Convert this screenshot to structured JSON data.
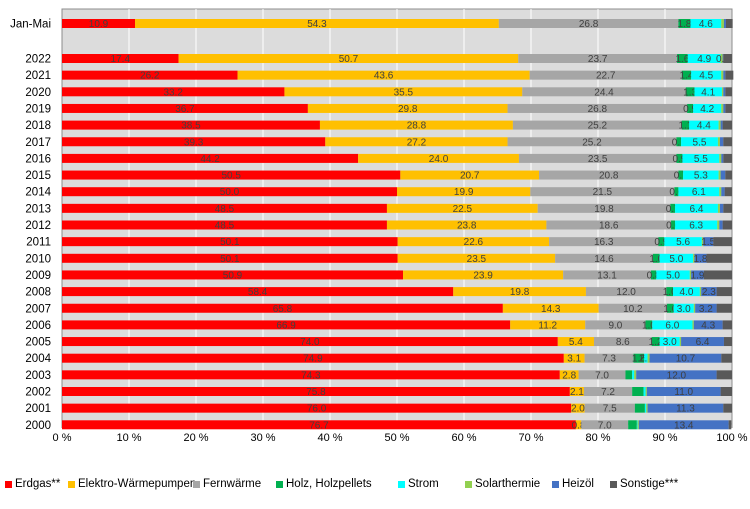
{
  "chart_data": {
    "type": "bar",
    "stacked": true,
    "orientation": "horizontal",
    "xlim": [
      0,
      100
    ],
    "x_ticks": [
      "0 %",
      "10 %",
      "20 %",
      "30 %",
      "40 %",
      "50 %",
      "60 %",
      "70 %",
      "80 %",
      "90 %",
      "100 %"
    ],
    "grid": true,
    "legend_position": "bottom",
    "categories": [
      "Jan-Mai",
      "2022",
      "2021",
      "2020",
      "2019",
      "2018",
      "2017",
      "2016",
      "2015",
      "2014",
      "2013",
      "2012",
      "2011",
      "2010",
      "2009",
      "2008",
      "2007",
      "2006",
      "2005",
      "2004",
      "2003",
      "2002",
      "2001",
      "2000"
    ],
    "series": [
      {
        "name": "Erdgas**",
        "color": "#ff0000",
        "values": [
          10.9,
          17.4,
          26.2,
          33.2,
          36.7,
          38.5,
          39.3,
          44.2,
          50.5,
          50.0,
          48.5,
          48.5,
          50.1,
          50.1,
          50.9,
          58.4,
          65.8,
          66.9,
          74.0,
          74.9,
          74.3,
          75.8,
          76.0,
          76.7
        ]
      },
      {
        "name": "Elektro-Wärmepumpen",
        "color": "#ffc000",
        "values": [
          54.3,
          50.7,
          43.6,
          35.5,
          29.8,
          28.8,
          27.2,
          24.0,
          20.7,
          19.9,
          22.5,
          23.8,
          22.6,
          23.5,
          23.9,
          19.8,
          14.3,
          11.2,
          5.4,
          3.1,
          2.8,
          2.1,
          2.0,
          0.8
        ]
      },
      {
        "name": "Fernwärme",
        "color": "#a6a6a6",
        "values": [
          26.8,
          23.7,
          22.7,
          24.4,
          26.8,
          25.2,
          25.2,
          23.5,
          20.8,
          21.5,
          19.8,
          18.6,
          16.3,
          14.6,
          13.1,
          12.0,
          10.2,
          9.0,
          8.6,
          7.3,
          7.0,
          7.2,
          7.5,
          7.0
        ]
      },
      {
        "name": "Holz, Holzpellets",
        "color": "#00b050",
        "values": [
          1.8,
          1.6,
          1.4,
          1.3,
          0.9,
          1.1,
          0.7,
          0.9,
          0.7,
          0.6,
          0.7,
          0.6,
          0.9,
          1.0,
          0.8,
          1.0,
          1.0,
          1.0,
          1.2,
          1.6,
          1.0,
          1.7,
          1.5,
          1.3
        ]
      },
      {
        "name": "Strom",
        "color": "#00ffff",
        "values": [
          4.6,
          4.9,
          4.5,
          4.1,
          4.2,
          4.4,
          5.5,
          5.5,
          5.3,
          6.1,
          6.4,
          6.3,
          5.6,
          5.0,
          5.0,
          4.0,
          3.0,
          6.0,
          3.0,
          0.5,
          0.3,
          0.3,
          0.2,
          0.1
        ]
      },
      {
        "name": "Solarthermie",
        "color": "#92d050",
        "values": [
          0.4,
          0.3,
          0.3,
          0.2,
          0.3,
          0.3,
          0.3,
          0.3,
          0.3,
          0.3,
          0.3,
          0.3,
          0.2,
          0.2,
          0.2,
          0.2,
          0.2,
          0.2,
          0.2,
          0.3,
          0.3,
          0.2,
          0.2,
          0.2
        ]
      },
      {
        "name": "Heizöl",
        "color": "#4472c4",
        "values": [
          0.3,
          0.1,
          0.3,
          0.3,
          0.3,
          0.3,
          0.5,
          0.3,
          0.7,
          0.5,
          0.5,
          0.5,
          1.5,
          1.8,
          1.9,
          2.3,
          3.2,
          4.3,
          6.4,
          10.7,
          12.0,
          11.0,
          11.3,
          13.4
        ]
      },
      {
        "name": "Sonstige***",
        "color": "#595959",
        "values": [
          1.0,
          1.3,
          1.2,
          1.0,
          1.0,
          1.4,
          1.3,
          1.3,
          1.0,
          1.1,
          1.3,
          1.4,
          2.8,
          3.8,
          4.2,
          2.3,
          2.3,
          1.4,
          1.2,
          1.6,
          2.3,
          1.7,
          1.3,
          0.4
        ]
      }
    ],
    "data_labels": [
      [
        "10.9",
        "54.3",
        "26.8",
        "1.8",
        "4.6",
        "",
        "",
        ""
      ],
      [
        "17.4",
        "50.7",
        "23.7",
        "1.6",
        "4.9",
        "",
        "0.1",
        ""
      ],
      [
        "26.2",
        "43.6",
        "22.7",
        "1.4",
        "4.5",
        "",
        "",
        ""
      ],
      [
        "33.2",
        "35.5",
        "24.4",
        "1.3",
        "4.1",
        "",
        "",
        ""
      ],
      [
        "36.7",
        "29.8",
        "26.8",
        "0.9",
        "4.2",
        "",
        "",
        ""
      ],
      [
        "38.5",
        "28.8",
        "25.2",
        "1.1",
        "4.4",
        "",
        "",
        ""
      ],
      [
        "39.3",
        "27.2",
        "25.2",
        "0.7",
        "5.5",
        "",
        "",
        ""
      ],
      [
        "44.2",
        "24.0",
        "23.5",
        "0.9",
        "5.5",
        "",
        "",
        ""
      ],
      [
        "50.5",
        "20.7",
        "20.8",
        "0.7",
        "5.3",
        "",
        "",
        ""
      ],
      [
        "50.0",
        "19.9",
        "21.5",
        "0.6",
        "6.1",
        "",
        "",
        ""
      ],
      [
        "48.5",
        "22.5",
        "19.8",
        "0.7",
        "6.4",
        "",
        "",
        ""
      ],
      [
        "48.5",
        "23.8",
        "18.6",
        "0.6",
        "6.3",
        "",
        "",
        ""
      ],
      [
        "50.1",
        "22.6",
        "16.3",
        "0.9",
        "5.6",
        "",
        "1.5",
        ""
      ],
      [
        "50.1",
        "23.5",
        "14.6",
        "1.0",
        "5.0",
        "",
        "1.8",
        ""
      ],
      [
        "50.9",
        "23.9",
        "13.1",
        "0.8",
        "5.0",
        "",
        "1.9",
        ""
      ],
      [
        "58.4",
        "19.8",
        "12.0",
        "1.0",
        "4.0",
        "",
        "2.3",
        ""
      ],
      [
        "65.8",
        "14.3",
        "10.2",
        "1.0",
        "3.0",
        "",
        "3.2",
        ""
      ],
      [
        "66.9",
        "11.2",
        "9.0",
        "1.0",
        "6.0",
        "",
        "4.3",
        ""
      ],
      [
        "74.0",
        "5.4",
        "8.6",
        "1.2",
        "3.0",
        "",
        "6.4",
        ""
      ],
      [
        "74.9",
        "3.1",
        "7.3",
        "1.6",
        "2.2",
        "",
        "10.7",
        ""
      ],
      [
        "74.3",
        "2.8",
        "7.0",
        "",
        "",
        "",
        "12.0",
        ""
      ],
      [
        "75.8",
        "2.1",
        "7.2",
        "",
        "",
        "",
        "11.0",
        ""
      ],
      [
        "76.0",
        "2.0",
        "7.5",
        "",
        "",
        "",
        "11.3",
        ""
      ],
      [
        "76.7",
        "0.8",
        "7.0",
        "",
        "",
        "",
        "13.4",
        ""
      ]
    ]
  }
}
